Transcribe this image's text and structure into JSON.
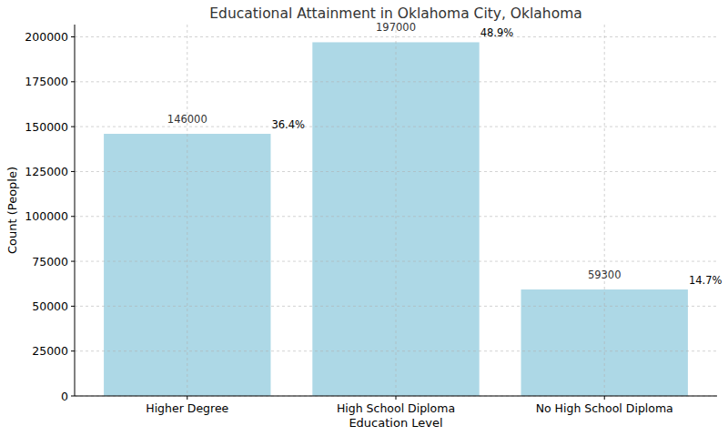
{
  "chart_data": {
    "type": "bar",
    "title": "Educational Attainment in Oklahoma City, Oklahoma",
    "x_label": "Education Level",
    "y_label": "Count (People)",
    "categories": [
      "Higher Degree",
      "High School Diploma",
      "No High School Diploma"
    ],
    "values": [
      146000,
      197000,
      59300
    ],
    "annotations": [
      "36.4%",
      "48.9%",
      "14.7%"
    ],
    "color": "#add8e6",
    "ylim": [
      0,
      206850
    ],
    "yticks": [
      0,
      25000,
      50000,
      75000,
      100000,
      125000,
      150000,
      175000,
      200000
    ],
    "grid": true,
    "data_labels": true
  }
}
